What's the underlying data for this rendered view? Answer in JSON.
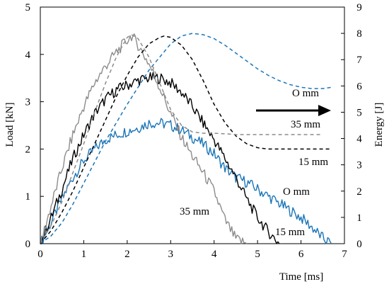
{
  "chart_data": {
    "type": "line",
    "title": "",
    "xlabel": "Time [ms]",
    "ylabel_left": "Load [kN]",
    "ylabel_right": "Energy [J]",
    "xlim": [
      0,
      7
    ],
    "ylim_left": [
      0,
      5
    ],
    "ylim_right": [
      0,
      9
    ],
    "x_ticks": [
      0,
      1,
      2,
      3,
      4,
      5,
      6,
      7
    ],
    "y_ticks_left": [
      0,
      1,
      2,
      3,
      4,
      5
    ],
    "y_ticks_right": [
      0,
      1,
      2,
      3,
      4,
      5,
      6,
      7,
      8,
      9
    ],
    "grid": false,
    "legend": "none",
    "annotations": {
      "load_0mm": "O mm",
      "load_15mm": "15 mm",
      "load_35mm": "35 mm",
      "energy_0mm": "O mm",
      "energy_15mm": "15 mm",
      "energy_35mm": "35 mm"
    },
    "colors": {
      "s0mm": "#1a75b8",
      "s15mm": "#000000",
      "s35mm": "#8c8c8c"
    },
    "series": [
      {
        "color": "#1a75b8",
        "style": "solid",
        "axis": "left",
        "x": [
          0,
          0.25,
          0.5,
          0.75,
          1.0,
          1.25,
          1.5,
          1.75,
          2.0,
          2.25,
          2.5,
          2.75,
          3.0,
          3.25,
          3.5,
          3.75,
          4.0,
          4.25,
          4.5,
          4.75,
          5.0,
          5.25,
          5.5,
          5.75,
          6.0,
          6.25,
          6.5,
          6.7
        ],
        "y": [
          0,
          0.45,
          0.95,
          1.4,
          1.75,
          2.0,
          2.2,
          2.3,
          2.38,
          2.45,
          2.55,
          2.55,
          2.5,
          2.4,
          2.25,
          2.1,
          1.9,
          1.6,
          1.4,
          1.3,
          1.15,
          1.0,
          0.85,
          0.7,
          0.55,
          0.35,
          0.12,
          0
        ]
      },
      {
        "color": "#000000",
        "style": "solid",
        "axis": "left",
        "x": [
          0,
          0.25,
          0.5,
          0.75,
          1.0,
          1.25,
          1.5,
          1.75,
          2.0,
          2.25,
          2.5,
          2.75,
          3.0,
          3.25,
          3.5,
          3.75,
          4.0,
          4.25,
          4.5,
          4.75,
          5.0,
          5.25,
          5.5
        ],
        "y": [
          0,
          0.55,
          1.15,
          1.8,
          2.3,
          2.75,
          3.05,
          3.25,
          3.35,
          3.45,
          3.5,
          3.5,
          3.4,
          3.2,
          2.9,
          2.55,
          2.2,
          1.8,
          1.4,
          0.95,
          0.55,
          0.25,
          0
        ]
      },
      {
        "color": "#8c8c8c",
        "style": "solid",
        "axis": "left",
        "x": [
          0,
          0.25,
          0.5,
          0.75,
          1.0,
          1.25,
          1.5,
          1.75,
          2.0,
          2.1,
          2.25,
          2.5,
          2.75,
          3.0,
          3.25,
          3.5,
          3.75,
          4.0,
          4.25,
          4.5,
          4.75
        ],
        "y": [
          0,
          0.8,
          1.6,
          2.3,
          2.9,
          3.4,
          3.75,
          4.05,
          4.3,
          4.4,
          4.2,
          3.8,
          3.3,
          2.75,
          2.25,
          1.85,
          1.5,
          1.1,
          0.5,
          0.1,
          0
        ]
      },
      {
        "color": "#1a75b8",
        "style": "dashed",
        "axis": "right",
        "x": [
          0,
          0.25,
          0.5,
          0.75,
          1.0,
          1.25,
          1.5,
          1.75,
          2.0,
          2.25,
          2.5,
          2.75,
          3.0,
          3.25,
          3.5,
          3.75,
          4.0,
          4.25,
          4.5,
          4.75,
          5.0,
          5.25,
          5.5,
          5.75,
          6.0,
          6.25,
          6.5,
          6.7
        ],
        "y": [
          0,
          0.3,
          0.8,
          1.5,
          2.3,
          3.1,
          3.9,
          4.6,
          5.3,
          5.95,
          6.6,
          7.1,
          7.6,
          7.9,
          8.0,
          7.95,
          7.8,
          7.55,
          7.25,
          6.95,
          6.65,
          6.4,
          6.2,
          6.05,
          5.95,
          5.9,
          5.9,
          5.95
        ]
      },
      {
        "color": "#000000",
        "style": "dashed",
        "axis": "right",
        "x": [
          0,
          0.25,
          0.5,
          0.75,
          1.0,
          1.25,
          1.5,
          1.75,
          2.0,
          2.25,
          2.5,
          2.75,
          2.85,
          3.0,
          3.25,
          3.5,
          3.75,
          4.0,
          4.25,
          4.5,
          4.75,
          5.0,
          5.25,
          5.5,
          6.0,
          6.5,
          6.7
        ],
        "y": [
          0,
          0.5,
          1.2,
          2.0,
          2.9,
          3.8,
          4.7,
          5.6,
          6.4,
          7.1,
          7.6,
          7.85,
          7.9,
          7.85,
          7.55,
          7.0,
          6.2,
          5.3,
          4.6,
          4.1,
          3.8,
          3.65,
          3.6,
          3.6,
          3.6,
          3.6,
          3.6
        ]
      },
      {
        "color": "#8c8c8c",
        "style": "dashed",
        "axis": "right",
        "x": [
          0,
          0.25,
          0.5,
          0.75,
          1.0,
          1.25,
          1.5,
          1.75,
          2.0,
          2.1,
          2.25,
          2.5,
          2.75,
          3.0,
          3.25,
          3.5,
          3.75,
          4.0,
          4.25,
          4.5,
          5.0,
          5.5,
          6.0,
          6.5
        ],
        "y": [
          0,
          0.7,
          1.6,
          2.7,
          3.8,
          5.0,
          6.1,
          7.1,
          7.85,
          7.95,
          7.8,
          7.1,
          6.1,
          5.1,
          4.5,
          4.25,
          4.2,
          4.2,
          4.18,
          4.15,
          4.15,
          4.15,
          4.15,
          4.15
        ]
      }
    ]
  }
}
